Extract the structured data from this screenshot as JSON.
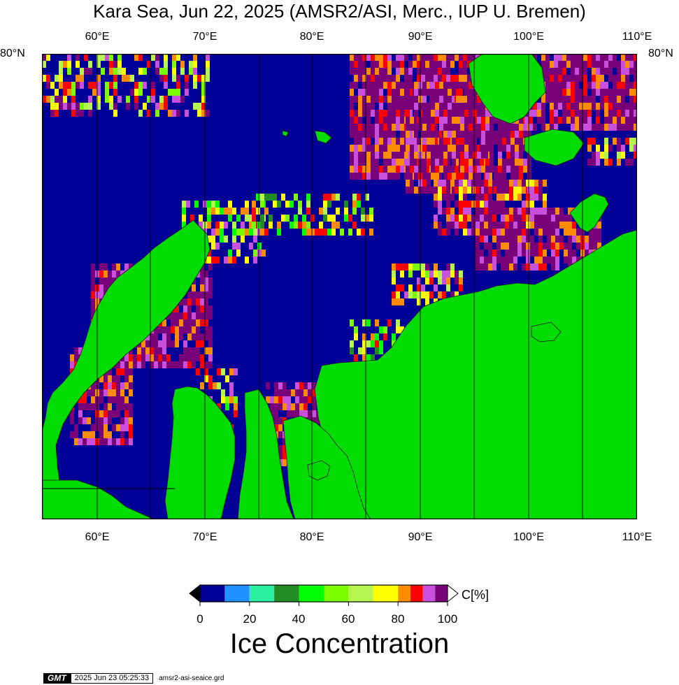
{
  "title": "Kara Sea, Jun 22, 2025 (AMSR2/ASI, Merc., IUP U. Bremen)",
  "map": {
    "lon_labels": [
      "60°E",
      "70°E",
      "80°E",
      "90°E",
      "100°E",
      "110°E"
    ],
    "lat_labels": [
      "80°N"
    ],
    "extent": {
      "lon_min": 55,
      "lon_max": 110,
      "lat_min": 68,
      "lat_max": 80
    },
    "colors": {
      "ocean": "#000096",
      "land": "#00dc00",
      "grid": "#000000"
    }
  },
  "colorbar": {
    "title": "Ice Concentration",
    "unit": "C[%]",
    "tick_labels": [
      "0",
      "20",
      "40",
      "60",
      "80",
      "100"
    ],
    "ticks": [
      0,
      20,
      40,
      60,
      80,
      100
    ],
    "boundaries": [
      0,
      10,
      20,
      30,
      40,
      50,
      60,
      70,
      80,
      85,
      90,
      95,
      100
    ],
    "colors": [
      "#000096",
      "#1e90ff",
      "#28f0a0",
      "#228b22",
      "#00ff00",
      "#7cfc00",
      "#b4f550",
      "#ffff00",
      "#ff8c00",
      "#ff0000",
      "#c850dc",
      "#780078"
    ]
  },
  "footer": {
    "logo": "GMT",
    "timestamp": "2025 Jun 23 05:25:33",
    "grid_file": "amsr2-asi-seaice.grd"
  }
}
